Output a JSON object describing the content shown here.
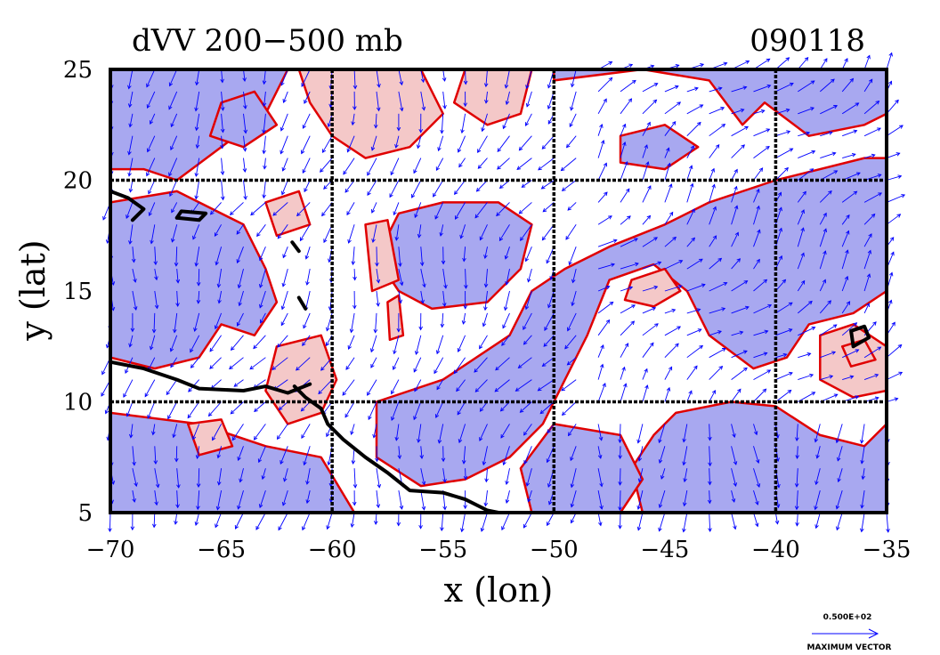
{
  "chart_data": {
    "type": "contour",
    "title": "dVV 200−500 mb",
    "date_label": "090118",
    "xlabel": "x (lon)",
    "ylabel": "y (lat)",
    "xlim": [
      -70,
      -35
    ],
    "ylim": [
      5,
      25
    ],
    "xticks": [
      -70,
      -65,
      -60,
      -55,
      -50,
      -45,
      -40,
      -35
    ],
    "xtick_labels": [
      "−70",
      "−65",
      "−60",
      "−55",
      "−50",
      "−45",
      "−40",
      "−35"
    ],
    "yticks": [
      5,
      10,
      15,
      20,
      25
    ],
    "ytick_labels": [
      "5",
      "10",
      "15",
      "20",
      "25"
    ],
    "grid_lon": [
      -60,
      -50,
      -40
    ],
    "grid_lat": [
      10,
      20
    ],
    "grid": true,
    "colors": {
      "negative_fill": "#a8a8f0",
      "positive_fill": "#f4c8c8",
      "contour_line": "#e00000",
      "vectors": "#0000ff",
      "coastline": "#000000"
    },
    "vector_legend": {
      "magnitude": "0.500E+02",
      "label": "MAXIMUM VECTOR"
    },
    "blue_regions": [
      [
        [
          -70,
          25
        ],
        [
          -62,
          25
        ],
        [
          -63,
          23
        ],
        [
          -65,
          21.5
        ],
        [
          -67,
          20
        ],
        [
          -68.5,
          20.5
        ],
        [
          -70,
          20.5
        ]
      ],
      [
        [
          -65,
          23.5
        ],
        [
          -63.5,
          24
        ],
        [
          -62.5,
          22.5
        ],
        [
          -64,
          21.5
        ],
        [
          -65.5,
          22
        ]
      ],
      [
        [
          -70,
          19
        ],
        [
          -67,
          19.5
        ],
        [
          -64,
          18
        ],
        [
          -63,
          16
        ],
        [
          -62.5,
          14.5
        ],
        [
          -63.5,
          13
        ],
        [
          -65,
          13.5
        ],
        [
          -66,
          12
        ],
        [
          -68,
          11.5
        ],
        [
          -70,
          12
        ]
      ],
      [
        [
          -70,
          9.5
        ],
        [
          -66,
          9
        ],
        [
          -63,
          8
        ],
        [
          -60.5,
          7.5
        ],
        [
          -59,
          5
        ],
        [
          -70,
          5
        ]
      ],
      [
        [
          -57,
          18.5
        ],
        [
          -55,
          19
        ],
        [
          -52.5,
          19
        ],
        [
          -51,
          18
        ],
        [
          -51.5,
          16
        ],
        [
          -53,
          14.5
        ],
        [
          -55.5,
          14.2
        ],
        [
          -57,
          15
        ],
        [
          -58,
          16.5
        ]
      ],
      [
        [
          -58,
          10
        ],
        [
          -55,
          11
        ],
        [
          -52,
          13
        ],
        [
          -51,
          15
        ],
        [
          -49.5,
          16
        ],
        [
          -47.5,
          17
        ],
        [
          -45,
          18
        ],
        [
          -43,
          19
        ],
        [
          -40,
          20
        ],
        [
          -36,
          21
        ],
        [
          -35,
          21
        ],
        [
          -35,
          15
        ],
        [
          -36.5,
          14
        ],
        [
          -38.5,
          13.5
        ],
        [
          -39.5,
          12
        ],
        [
          -41,
          11.5
        ],
        [
          -43,
          13
        ],
        [
          -44,
          15
        ],
        [
          -45.5,
          16.2
        ],
        [
          -47.5,
          15.5
        ],
        [
          -48.5,
          13
        ],
        [
          -49.5,
          11
        ],
        [
          -50.5,
          9
        ],
        [
          -52,
          7.5
        ],
        [
          -54,
          6.5
        ],
        [
          -56,
          6.2
        ],
        [
          -58,
          7.5
        ]
      ],
      [
        [
          -50,
          24.5
        ],
        [
          -46,
          25
        ],
        [
          -43,
          24.5
        ],
        [
          -41.5,
          22.5
        ],
        [
          -40.5,
          23.5
        ],
        [
          -38.5,
          22
        ],
        [
          -36,
          22.5
        ],
        [
          -35,
          23
        ],
        [
          -35,
          25
        ],
        [
          -50,
          25
        ]
      ],
      [
        [
          -47,
          22
        ],
        [
          -45,
          22.5
        ],
        [
          -43.5,
          21.5
        ],
        [
          -45,
          20.5
        ],
        [
          -47,
          20.8
        ]
      ],
      [
        [
          -44.5,
          9.5
        ],
        [
          -42,
          10
        ],
        [
          -40,
          9.8
        ],
        [
          -38,
          8.5
        ],
        [
          -36,
          8
        ],
        [
          -35,
          9
        ],
        [
          -35,
          5
        ],
        [
          -46,
          5
        ],
        [
          -46.5,
          7
        ],
        [
          -45.5,
          8.5
        ]
      ],
      [
        [
          -50,
          9
        ],
        [
          -47,
          8.5
        ],
        [
          -46,
          6.5
        ],
        [
          -47,
          5
        ],
        [
          -51,
          5
        ],
        [
          -51.5,
          7
        ]
      ]
    ],
    "pink_regions": [
      [
        [
          -61.5,
          25
        ],
        [
          -56,
          25
        ],
        [
          -55,
          23
        ],
        [
          -56.5,
          21.5
        ],
        [
          -58.5,
          21
        ],
        [
          -60,
          22
        ],
        [
          -61,
          23.5
        ]
      ],
      [
        [
          -54,
          25
        ],
        [
          -51,
          25
        ],
        [
          -51.5,
          23
        ],
        [
          -53,
          22.5
        ],
        [
          -54.5,
          23.5
        ]
      ],
      [
        [
          -63,
          19
        ],
        [
          -61.5,
          19.5
        ],
        [
          -61,
          18
        ],
        [
          -62.5,
          17.5
        ]
      ],
      [
        [
          -58.5,
          18
        ],
        [
          -57.5,
          18.2
        ],
        [
          -57,
          15.5
        ],
        [
          -58.2,
          15
        ]
      ],
      [
        [
          -57.5,
          14.5
        ],
        [
          -57,
          14.8
        ],
        [
          -56.8,
          13
        ],
        [
          -57.4,
          12.8
        ]
      ],
      [
        [
          -62.5,
          12.5
        ],
        [
          -60.5,
          13
        ],
        [
          -59.8,
          11
        ],
        [
          -60.5,
          9.5
        ],
        [
          -62,
          9
        ],
        [
          -63,
          10.5
        ]
      ],
      [
        [
          -66.5,
          9
        ],
        [
          -65,
          9.2
        ],
        [
          -64.5,
          8
        ],
        [
          -66,
          7.6
        ]
      ],
      [
        [
          -46.5,
          15.5
        ],
        [
          -45,
          16
        ],
        [
          -44.3,
          15
        ],
        [
          -45.5,
          14.3
        ],
        [
          -46.8,
          14.6
        ]
      ],
      [
        [
          -38,
          13
        ],
        [
          -36.5,
          13.5
        ],
        [
          -35,
          12.5
        ],
        [
          -35,
          10.5
        ],
        [
          -36.5,
          10.2
        ],
        [
          -38,
          11
        ]
      ],
      [
        [
          -37,
          12.5
        ],
        [
          -36,
          12.8
        ],
        [
          -35.5,
          11.9
        ],
        [
          -36.6,
          11.6
        ]
      ]
    ],
    "coastlines": [
      [
        [
          -70,
          19.5
        ],
        [
          -69.2,
          19.2
        ],
        [
          -68.5,
          18.7
        ],
        [
          -69,
          18.2
        ]
      ],
      [
        [
          -67,
          18.3
        ],
        [
          -66,
          18.2
        ],
        [
          -65.7,
          18.5
        ],
        [
          -66.8,
          18.6
        ],
        [
          -67,
          18.3
        ]
      ],
      [
        [
          -61.8,
          17.2
        ],
        [
          -61.5,
          16.8
        ]
      ],
      [
        [
          -61.5,
          14.7
        ],
        [
          -61.2,
          14.2
        ]
      ],
      [
        [
          -70,
          11.8
        ],
        [
          -68.5,
          11.5
        ],
        [
          -67,
          11
        ],
        [
          -66,
          10.6
        ],
        [
          -64,
          10.5
        ],
        [
          -63,
          10.7
        ],
        [
          -62,
          10.4
        ],
        [
          -61,
          10.8
        ]
      ],
      [
        [
          -61.7,
          10.7
        ],
        [
          -61.2,
          10.2
        ],
        [
          -60.5,
          9.7
        ],
        [
          -60.2,
          9.0
        ],
        [
          -59.5,
          8.3
        ],
        [
          -58.5,
          7.5
        ],
        [
          -57.5,
          6.8
        ],
        [
          -56.5,
          6
        ],
        [
          -55,
          5.9
        ],
        [
          -54,
          5.6
        ],
        [
          -53,
          5.1
        ],
        [
          -52.5,
          5
        ]
      ],
      [
        [
          -36.5,
          12.5
        ],
        [
          -35.8,
          12.9
        ],
        [
          -36,
          13.4
        ],
        [
          -36.6,
          13.2
        ],
        [
          -36.5,
          12.5
        ]
      ]
    ],
    "vector_field": "mixed flow; northeasterly over west and center, southwesterly in east",
    "vector_spacing_deg": 1.0
  }
}
